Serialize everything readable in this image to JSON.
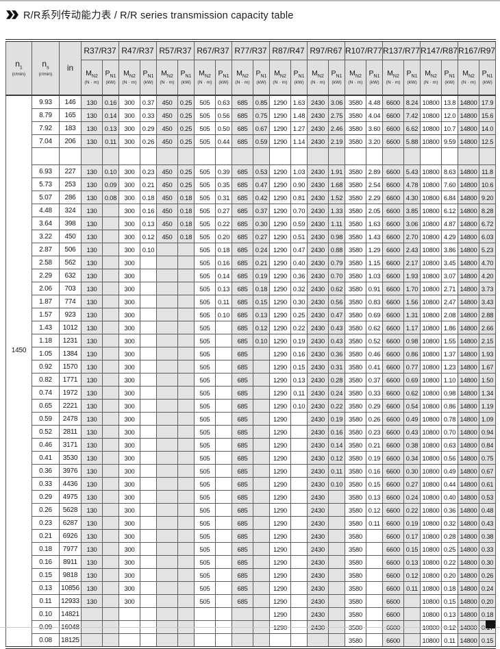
{
  "title": {
    "text": "R/R系列传动能力表 / R/R series transmission capacity table"
  },
  "table": {
    "n1_header": {
      "base": "n",
      "sub": "1",
      "unit": "(r/min)"
    },
    "ns_header": {
      "base": "n",
      "sub": "s",
      "unit": "(r/min)"
    },
    "in_header": {
      "base": "in",
      "sub": "",
      "unit": ""
    },
    "m_header": {
      "base": "M",
      "sub": "N2",
      "unit": "(N · m)"
    },
    "p_header": {
      "base": "P",
      "sub": "N1",
      "unit": "(kW)"
    },
    "col_headers": [
      "R37/R37",
      "R47/R37",
      "R57/R37",
      "R67/R37",
      "R77/R37",
      "R87/R47",
      "R97/R67",
      "R107/R77",
      "R137/R77",
      "R147/R87",
      "R167/R97"
    ],
    "n1_value": "1450",
    "rows": [
      {
        "ns": "9.93",
        "in": "146",
        "v": [
          "130",
          "0.16",
          "300",
          "0.37",
          "450",
          "0.25",
          "505",
          "0.63",
          "685",
          "0.85",
          "1290",
          "1.63",
          "2430",
          "3.06",
          "3580",
          "4.48",
          "6600",
          "8.24",
          "10800",
          "13.8",
          "14800",
          "17.9"
        ]
      },
      {
        "ns": "8.79",
        "in": "165",
        "v": [
          "130",
          "0.14",
          "300",
          "0.33",
          "450",
          "0.25",
          "505",
          "0.56",
          "685",
          "0.75",
          "1290",
          "1.48",
          "2430",
          "2.75",
          "3580",
          "4.04",
          "6600",
          "7.42",
          "10800",
          "12.0",
          "14800",
          "15.6"
        ]
      },
      {
        "ns": "7.92",
        "in": "183",
        "v": [
          "130",
          "0.13",
          "300",
          "0.29",
          "450",
          "0.25",
          "505",
          "0.50",
          "685",
          "0.67",
          "1290",
          "1.27",
          "2430",
          "2.46",
          "3580",
          "3.60",
          "6600",
          "6.62",
          "10800",
          "10.7",
          "14800",
          "14.0"
        ]
      },
      {
        "ns": "7.04",
        "in": "206",
        "v": [
          "130",
          "0.11",
          "300",
          "0.26",
          "450",
          "0.25",
          "505",
          "0.44",
          "685",
          "0.59",
          "1290",
          "1.14",
          "2430",
          "2.19",
          "3580",
          "3.20",
          "6600",
          "5.88",
          "10800",
          "9.59",
          "14800",
          "12.5"
        ]
      },
      {
        "ns": "",
        "in": "",
        "blank": true,
        "v": [
          "",
          "",
          "",
          "",
          "",
          "",
          "",
          "",
          "",
          "",
          "",
          "",
          "",
          "",
          "",
          "",
          "",
          "",
          "",
          "",
          "",
          ""
        ]
      },
      {
        "ns": "6.93",
        "in": "227",
        "v": [
          "130",
          "0.10",
          "300",
          "0.23",
          "450",
          "0.25",
          "505",
          "0.39",
          "685",
          "0.53",
          "1290",
          "1.03",
          "2430",
          "1.91",
          "3580",
          "2.89",
          "6600",
          "5.43",
          "10800",
          "8.63",
          "14800",
          "11.8"
        ]
      },
      {
        "ns": "5.73",
        "in": "253",
        "v": [
          "130",
          "0.09",
          "300",
          "0.21",
          "450",
          "0.25",
          "505",
          "0.35",
          "685",
          "0.47",
          "1290",
          "0.90",
          "2430",
          "1.68",
          "3580",
          "2.54",
          "6600",
          "4.78",
          "10800",
          "7.60",
          "14800",
          "10.6"
        ]
      },
      {
        "ns": "5.07",
        "in": "286",
        "v": [
          "130",
          "0.08",
          "300",
          "0.18",
          "450",
          "0.18",
          "505",
          "0.31",
          "685",
          "0.42",
          "1290",
          "0.81",
          "2430",
          "1.52",
          "3580",
          "2.29",
          "6600",
          "4.30",
          "10800",
          "6.84",
          "14800",
          "9.20"
        ]
      },
      {
        "ns": "4.48",
        "in": "324",
        "v": [
          "130",
          "",
          "300",
          "0.16",
          "450",
          "0.18",
          "505",
          "0.27",
          "685",
          "0.37",
          "1290",
          "0.70",
          "2430",
          "1.33",
          "3580",
          "2.05",
          "6600",
          "3.85",
          "10800",
          "6.12",
          "14800",
          "8.28"
        ]
      },
      {
        "ns": "3.64",
        "in": "398",
        "v": [
          "130",
          "",
          "300",
          "0.13",
          "450",
          "0.18",
          "505",
          "0.22",
          "685",
          "0.30",
          "1290",
          "0.59",
          "2430",
          "1.11",
          "3580",
          "1.63",
          "6600",
          "3.06",
          "10800",
          "4.87",
          "14800",
          "6.72"
        ]
      },
      {
        "ns": "3.22",
        "in": "450",
        "v": [
          "130",
          "",
          "300",
          "0.12",
          "450",
          "0.18",
          "505",
          "0.20",
          "685",
          "0.27",
          "1290",
          "0.51",
          "2430",
          "0.98",
          "3580",
          "1.43",
          "6600",
          "2.70",
          "10800",
          "4.29",
          "14800",
          "6.03"
        ]
      },
      {
        "ns": "2.87",
        "in": "506",
        "v": [
          "130",
          "",
          "300",
          "0.10",
          "",
          "",
          "505",
          "0.18",
          "685",
          "0.24",
          "1290",
          "0.47",
          "2430",
          "0.88",
          "3580",
          "1.29",
          "6600",
          "2.43",
          "10800",
          "3.86",
          "14800",
          "5.23"
        ]
      },
      {
        "ns": "2.58",
        "in": "562",
        "v": [
          "130",
          "",
          "300",
          "",
          "",
          "",
          "505",
          "0.16",
          "685",
          "0.21",
          "1290",
          "0.40",
          "2430",
          "0.79",
          "3580",
          "1.15",
          "6600",
          "2.17",
          "10800",
          "3.45",
          "14800",
          "4.70"
        ]
      },
      {
        "ns": "2.29",
        "in": "632",
        "v": [
          "130",
          "",
          "300",
          "",
          "",
          "",
          "505",
          "0.14",
          "685",
          "0.19",
          "1290",
          "0.36",
          "2430",
          "0.70",
          "3580",
          "1.03",
          "6600",
          "1.93",
          "10800",
          "3.07",
          "14800",
          "4.20"
        ]
      },
      {
        "ns": "2.06",
        "in": "703",
        "v": [
          "130",
          "",
          "300",
          "",
          "",
          "",
          "505",
          "0.13",
          "685",
          "0.18",
          "1290",
          "0.32",
          "2430",
          "0.62",
          "3580",
          "0.91",
          "6600",
          "1.70",
          "10800",
          "2.71",
          "14800",
          "3.73"
        ]
      },
      {
        "ns": "1.87",
        "in": "774",
        "v": [
          "130",
          "",
          "300",
          "",
          "",
          "",
          "505",
          "0.11",
          "685",
          "0.15",
          "1290",
          "0.30",
          "2430",
          "0.56",
          "3580",
          "0.83",
          "6600",
          "1.56",
          "10800",
          "2.47",
          "14800",
          "3.43"
        ]
      },
      {
        "ns": "1.57",
        "in": "923",
        "v": [
          "130",
          "",
          "300",
          "",
          "",
          "",
          "505",
          "0.10",
          "685",
          "0.13",
          "1290",
          "0.25",
          "2430",
          "0.47",
          "3580",
          "0.69",
          "6600",
          "1.31",
          "10800",
          "2.08",
          "14800",
          "2.88"
        ]
      },
      {
        "ns": "1.43",
        "in": "1012",
        "v": [
          "130",
          "",
          "300",
          "",
          "",
          "",
          "505",
          "",
          "685",
          "0.12",
          "1290",
          "0.22",
          "2430",
          "0.43",
          "3580",
          "0.62",
          "6600",
          "1.17",
          "10800",
          "1.86",
          "14800",
          "2.66"
        ]
      },
      {
        "ns": "1.18",
        "in": "1231",
        "v": [
          "130",
          "",
          "300",
          "",
          "",
          "",
          "505",
          "",
          "685",
          "0.10",
          "1290",
          "0.19",
          "2430",
          "0.43",
          "3580",
          "0.52",
          "6600",
          "0.98",
          "10800",
          "1.55",
          "14800",
          "2.15"
        ]
      },
      {
        "ns": "1.05",
        "in": "1384",
        "v": [
          "130",
          "",
          "300",
          "",
          "",
          "",
          "505",
          "",
          "685",
          "",
          "1290",
          "0.16",
          "2430",
          "0.36",
          "3580",
          "0.46",
          "6600",
          "0.86",
          "10800",
          "1.37",
          "14800",
          "1.93"
        ]
      },
      {
        "ns": "0.92",
        "in": "1570",
        "v": [
          "130",
          "",
          "300",
          "",
          "",
          "",
          "505",
          "",
          "685",
          "",
          "1290",
          "0.15",
          "2430",
          "0.31",
          "3580",
          "0.41",
          "6600",
          "0.77",
          "10800",
          "1.23",
          "14800",
          "1.67"
        ]
      },
      {
        "ns": "0.82",
        "in": "1771",
        "v": [
          "130",
          "",
          "300",
          "",
          "",
          "",
          "505",
          "",
          "685",
          "",
          "1290",
          "0.13",
          "2430",
          "0.28",
          "3580",
          "0.37",
          "6600",
          "0.69",
          "10800",
          "1.10",
          "14800",
          "1.50"
        ]
      },
      {
        "ns": "0.74",
        "in": "1972",
        "v": [
          "130",
          "",
          "300",
          "",
          "",
          "",
          "505",
          "",
          "685",
          "",
          "1290",
          "0.11",
          "2430",
          "0.24",
          "3580",
          "0.33",
          "6600",
          "0.62",
          "10800",
          "0.98",
          "14800",
          "1.34"
        ]
      },
      {
        "ns": "0.65",
        "in": "2221",
        "v": [
          "130",
          "",
          "300",
          "",
          "",
          "",
          "505",
          "",
          "685",
          "",
          "1290",
          "0.10",
          "2430",
          "0.22",
          "3580",
          "0.29",
          "6600",
          "0.54",
          "10800",
          "0.86",
          "14800",
          "1.19"
        ]
      },
      {
        "ns": "0.59",
        "in": "2478",
        "v": [
          "130",
          "",
          "300",
          "",
          "",
          "",
          "505",
          "",
          "685",
          "",
          "1290",
          "",
          "2430",
          "0.19",
          "3580",
          "0.26",
          "6600",
          "0.49",
          "10800",
          "0.78",
          "14800",
          "1.09"
        ]
      },
      {
        "ns": "0.52",
        "in": "2811",
        "v": [
          "130",
          "",
          "300",
          "",
          "",
          "",
          "505",
          "",
          "685",
          "",
          "1290",
          "",
          "2430",
          "0.16",
          "3580",
          "0.23",
          "6600",
          "0.43",
          "10800",
          "0.70",
          "14800",
          "0.94"
        ]
      },
      {
        "ns": "0.46",
        "in": "3171",
        "v": [
          "130",
          "",
          "300",
          "",
          "",
          "",
          "505",
          "",
          "685",
          "",
          "1290",
          "",
          "2430",
          "0.14",
          "3580",
          "0.21",
          "6600",
          "0.38",
          "10800",
          "0.63",
          "14800",
          "0.84"
        ]
      },
      {
        "ns": "0.41",
        "in": "3530",
        "v": [
          "130",
          "",
          "300",
          "",
          "",
          "",
          "505",
          "",
          "685",
          "",
          "1290",
          "",
          "2430",
          "0.12",
          "3580",
          "0.19",
          "6600",
          "0.34",
          "10800",
          "0.56",
          "14800",
          "0.75"
        ]
      },
      {
        "ns": "0.36",
        "in": "3976",
        "v": [
          "130",
          "",
          "300",
          "",
          "",
          "",
          "505",
          "",
          "685",
          "",
          "1290",
          "",
          "2430",
          "0.11",
          "3580",
          "0.16",
          "6600",
          "0.30",
          "10800",
          "0.49",
          "14800",
          "0.67"
        ]
      },
      {
        "ns": "0.33",
        "in": "4436",
        "v": [
          "130",
          "",
          "300",
          "",
          "",
          "",
          "505",
          "",
          "685",
          "",
          "1290",
          "",
          "2430",
          "0.10",
          "3580",
          "0.15",
          "6600",
          "0.27",
          "10800",
          "0.44",
          "14800",
          "0.61"
        ]
      },
      {
        "ns": "0.29",
        "in": "4975",
        "v": [
          "130",
          "",
          "300",
          "",
          "",
          "",
          "505",
          "",
          "685",
          "",
          "1290",
          "",
          "2430",
          "",
          "3580",
          "0.13",
          "6600",
          "0.24",
          "10800",
          "0.40",
          "14800",
          "0.53"
        ]
      },
      {
        "ns": "0.26",
        "in": "5628",
        "v": [
          "130",
          "",
          "300",
          "",
          "",
          "",
          "505",
          "",
          "685",
          "",
          "1290",
          "",
          "2430",
          "",
          "3580",
          "0.12",
          "6600",
          "0.22",
          "10800",
          "0.36",
          "14800",
          "0.48"
        ]
      },
      {
        "ns": "0.23",
        "in": "6287",
        "v": [
          "130",
          "",
          "300",
          "",
          "",
          "",
          "505",
          "",
          "685",
          "",
          "1290",
          "",
          "2430",
          "",
          "3580",
          "0.11",
          "6600",
          "0.19",
          "10800",
          "0.32",
          "14800",
          "0.43"
        ]
      },
      {
        "ns": "0.21",
        "in": "6926",
        "v": [
          "130",
          "",
          "300",
          "",
          "",
          "",
          "505",
          "",
          "685",
          "",
          "1290",
          "",
          "2430",
          "",
          "3580",
          "",
          "6600",
          "0.17",
          "10800",
          "0.28",
          "14800",
          "0.38"
        ]
      },
      {
        "ns": "0.18",
        "in": "7977",
        "v": [
          "130",
          "",
          "300",
          "",
          "",
          "",
          "505",
          "",
          "685",
          "",
          "1290",
          "",
          "2430",
          "",
          "3580",
          "",
          "6600",
          "0.15",
          "10800",
          "0.25",
          "14800",
          "0.33"
        ]
      },
      {
        "ns": "0.16",
        "in": "8911",
        "v": [
          "130",
          "",
          "300",
          "",
          "",
          "",
          "505",
          "",
          "685",
          "",
          "1290",
          "",
          "2430",
          "",
          "3580",
          "",
          "6600",
          "0.13",
          "10800",
          "0.22",
          "14800",
          "0.30"
        ]
      },
      {
        "ns": "0.15",
        "in": "9818",
        "v": [
          "130",
          "",
          "300",
          "",
          "",
          "",
          "505",
          "",
          "685",
          "",
          "1290",
          "",
          "2430",
          "",
          "3580",
          "",
          "6600",
          "0.12",
          "10800",
          "0.20",
          "14800",
          "0.26"
        ]
      },
      {
        "ns": "0.13",
        "in": "10856",
        "v": [
          "130",
          "",
          "300",
          "",
          "",
          "",
          "505",
          "",
          "685",
          "",
          "1290",
          "",
          "2430",
          "",
          "3580",
          "",
          "6600",
          "0.11",
          "10800",
          "0.18",
          "14800",
          "0.24"
        ]
      },
      {
        "ns": "0.11",
        "in": "12933",
        "v": [
          "130",
          "",
          "300",
          "",
          "",
          "",
          "505",
          "",
          "685",
          "",
          "1290",
          "",
          "2430",
          "",
          "3580",
          "",
          "6600",
          "",
          "10800",
          "0.15",
          "14800",
          "0.20"
        ]
      },
      {
        "ns": "0.10",
        "in": "14821",
        "v": [
          "",
          "",
          "",
          "",
          "",
          "",
          "",
          "",
          "",
          "",
          "1290",
          "",
          "2430",
          "",
          "3580",
          "",
          "6600",
          "",
          "10800",
          "0.13",
          "14800",
          "0.18"
        ]
      },
      {
        "ns": "0.09",
        "in": "16048",
        "v": [
          "",
          "",
          "",
          "",
          "",
          "",
          "",
          "",
          "",
          "",
          "1290",
          "",
          "2430",
          "",
          "3580",
          "",
          "6600",
          "",
          "10800",
          "0.12",
          "14800",
          "0.17"
        ]
      },
      {
        "ns": "0.08",
        "in": "18125",
        "v": [
          "",
          "",
          "",
          "",
          "",
          "",
          "",
          "",
          "",
          "",
          "",
          "",
          "",
          "",
          "3580",
          "",
          "6600",
          "",
          "10800",
          "0.11",
          "14800",
          "0.15"
        ]
      }
    ]
  }
}
